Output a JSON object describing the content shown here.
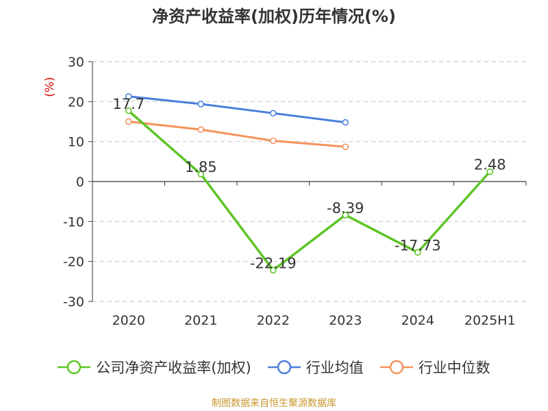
{
  "title": "净资产收益率(加权)历年情况(%)",
  "footer": {
    "text": "制图数据来自恒生聚源数据库",
    "color": "#c8962c"
  },
  "chart_data": {
    "type": "line",
    "title": "净资产收益率(加权)历年情况(%)",
    "ylabel": "(%)",
    "ylabel_color": "#d40000",
    "xlabel": "",
    "ylim": [
      -30,
      30
    ],
    "yticks": [
      30,
      20,
      10,
      0,
      -10,
      -20,
      -30
    ],
    "grid": true,
    "legend_position": "bottom",
    "categories": [
      "2020",
      "2021",
      "2022",
      "2023",
      "2024",
      "2025H1"
    ],
    "series": [
      {
        "name": "公司净资产收益率(加权)",
        "color": "#5ec526",
        "values": [
          17.7,
          1.85,
          -22.19,
          -8.39,
          -17.73,
          2.48
        ],
        "labels": [
          "17.7",
          "1.85",
          "-22.19",
          "-8.39",
          "-17.73",
          "2.48"
        ]
      },
      {
        "name": "行业均值",
        "color": "#4a7fdc",
        "values": [
          21.3,
          19.4,
          17.1,
          14.8,
          null,
          null
        ]
      },
      {
        "name": "行业中位数",
        "color": "#f4925a",
        "values": [
          15.0,
          13.0,
          10.2,
          8.7,
          null,
          null
        ]
      }
    ]
  }
}
